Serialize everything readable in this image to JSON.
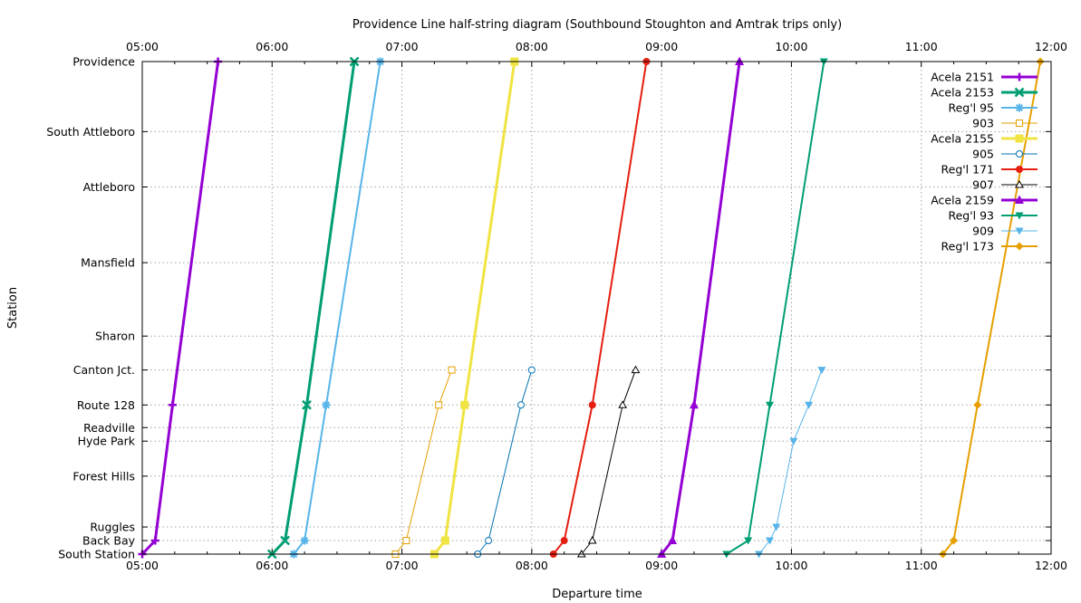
{
  "chart_data": {
    "type": "line",
    "title": "Providence Line half-string diagram (Southbound Stoughton and Amtrak trips only)",
    "xlabel": "Departure time",
    "ylabel": "Station",
    "x_ticks": [
      "05:00",
      "06:00",
      "07:00",
      "08:00",
      "09:00",
      "10:00",
      "11:00",
      "12:00"
    ],
    "xlim": [
      "05:00",
      "12:00"
    ],
    "grid": true,
    "legend_position": "top-right",
    "stations": [
      {
        "name": "Providence",
        "distance": 43.6
      },
      {
        "name": "South Attleboro",
        "distance": 37.4
      },
      {
        "name": "Attleboro",
        "distance": 32.5
      },
      {
        "name": "Mansfield",
        "distance": 25.8
      },
      {
        "name": "Sharon",
        "distance": 19.3
      },
      {
        "name": "Canton Jct.",
        "distance": 16.3
      },
      {
        "name": "Route 128",
        "distance": 13.2
      },
      {
        "name": "Readville",
        "distance": 11.2
      },
      {
        "name": "Hyde Park",
        "distance": 10.0
      },
      {
        "name": "Forest Hills",
        "distance": 6.9
      },
      {
        "name": "Ruggles",
        "distance": 2.4
      },
      {
        "name": "Back Bay",
        "distance": 1.2
      },
      {
        "name": "South Station",
        "distance": 0.0
      }
    ],
    "series": [
      {
        "name": "Acela 2151",
        "color": "#9400d3",
        "marker": "plus",
        "width": 3,
        "points": [
          [
            "05:00",
            "South Station"
          ],
          [
            "05:06",
            "Back Bay"
          ],
          [
            "05:14",
            "Route 128"
          ],
          [
            "05:35",
            "Providence"
          ]
        ]
      },
      {
        "name": "Acela 2153",
        "color": "#009e73",
        "marker": "cross",
        "width": 3,
        "points": [
          [
            "06:00",
            "South Station"
          ],
          [
            "06:06",
            "Back Bay"
          ],
          [
            "06:16",
            "Route 128"
          ],
          [
            "06:38",
            "Providence"
          ]
        ]
      },
      {
        "name": "Reg'l 95",
        "color": "#56b4e9",
        "marker": "star",
        "width": 2,
        "points": [
          [
            "06:10",
            "South Station"
          ],
          [
            "06:15",
            "Back Bay"
          ],
          [
            "06:25",
            "Route 128"
          ],
          [
            "06:50",
            "Providence"
          ]
        ]
      },
      {
        "name": "903",
        "color": "#e69f00",
        "marker": "open-square",
        "width": 1,
        "points": [
          [
            "06:57",
            "South Station"
          ],
          [
            "07:02",
            "Back Bay"
          ],
          [
            "07:17",
            "Route 128"
          ],
          [
            "07:23",
            "Canton Jct."
          ]
        ]
      },
      {
        "name": "Acela 2155",
        "color": "#f0e442",
        "marker": "filled-square",
        "width": 3,
        "points": [
          [
            "07:15",
            "South Station"
          ],
          [
            "07:20",
            "Back Bay"
          ],
          [
            "07:29",
            "Route 128"
          ],
          [
            "07:52",
            "Providence"
          ]
        ]
      },
      {
        "name": "905",
        "color": "#0072b2",
        "marker": "open-circle",
        "width": 1,
        "points": [
          [
            "07:35",
            "South Station"
          ],
          [
            "07:40",
            "Back Bay"
          ],
          [
            "07:55",
            "Route 128"
          ],
          [
            "08:00",
            "Canton Jct."
          ]
        ]
      },
      {
        "name": "Reg'l 171",
        "color": "#e51e10",
        "marker": "filled-circle",
        "width": 2,
        "points": [
          [
            "08:10",
            "South Station"
          ],
          [
            "08:15",
            "Back Bay"
          ],
          [
            "08:28",
            "Route 128"
          ],
          [
            "08:53",
            "Providence"
          ]
        ]
      },
      {
        "name": "907",
        "color": "#000000",
        "marker": "open-triangle",
        "width": 1,
        "points": [
          [
            "08:23",
            "South Station"
          ],
          [
            "08:28",
            "Back Bay"
          ],
          [
            "08:42",
            "Route 128"
          ],
          [
            "08:48",
            "Canton Jct."
          ]
        ]
      },
      {
        "name": "Acela 2159",
        "color": "#9400d3",
        "marker": "filled-triangle",
        "width": 3,
        "points": [
          [
            "09:00",
            "South Station"
          ],
          [
            "09:05",
            "Back Bay"
          ],
          [
            "09:15",
            "Route 128"
          ],
          [
            "09:36",
            "Providence"
          ]
        ]
      },
      {
        "name": "Reg'l 93",
        "color": "#009e73",
        "marker": "filled-down-triangle",
        "width": 2,
        "points": [
          [
            "09:30",
            "South Station"
          ],
          [
            "09:40",
            "Back Bay"
          ],
          [
            "09:50",
            "Route 128"
          ],
          [
            "10:15",
            "Providence"
          ]
        ]
      },
      {
        "name": "909",
        "color": "#56b4e9",
        "marker": "filled-down-triangle",
        "width": 1,
        "points": [
          [
            "09:45",
            "South Station"
          ],
          [
            "09:50",
            "Back Bay"
          ],
          [
            "09:53",
            "Ruggles"
          ],
          [
            "10:01",
            "Hyde Park"
          ],
          [
            "10:08",
            "Route 128"
          ],
          [
            "10:14",
            "Canton Jct."
          ]
        ]
      },
      {
        "name": "Reg'l 173",
        "color": "#e69f00",
        "marker": "filled-diamond",
        "width": 2,
        "points": [
          [
            "11:10",
            "South Station"
          ],
          [
            "11:15",
            "Back Bay"
          ],
          [
            "11:26",
            "Route 128"
          ],
          [
            "11:55",
            "Providence"
          ]
        ]
      }
    ]
  }
}
